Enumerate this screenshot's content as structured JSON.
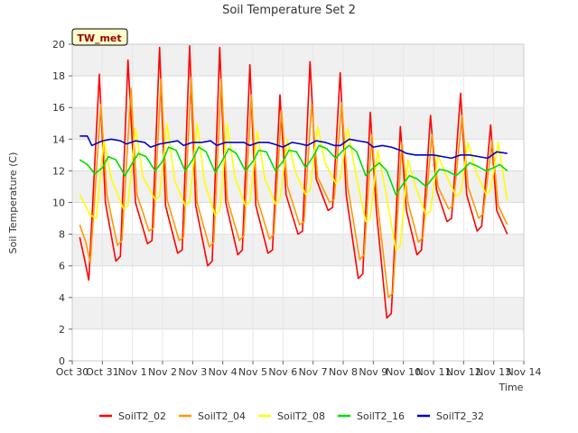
{
  "chart_data": {
    "type": "line",
    "title": "Soil Temperature Set 2",
    "xlabel": "Time",
    "ylabel": "Soil Temperature (C)",
    "site_label": "TW_met",
    "ylim": [
      0,
      20
    ],
    "xlim": [
      0,
      15
    ],
    "yticks": [
      0,
      2,
      4,
      6,
      8,
      10,
      12,
      14,
      16,
      18,
      20
    ],
    "xtick_labels": [
      "Oct 30",
      "Oct 31",
      "Nov 1",
      "Nov 2",
      "Nov 3",
      "Nov 4",
      "Nov 5",
      "Nov 6",
      "Nov 7",
      "Nov 8",
      "Nov 9",
      "Nov 10",
      "Nov 11",
      "Nov 12",
      "Nov 13",
      "Nov 14"
    ],
    "grid": true,
    "legend_position": "bottom",
    "x_unit_note": "x values are days since Oct 30 00:00",
    "series": [
      {
        "name": "SoilT2_02",
        "color": "#ff0000",
        "x": [
          0.25,
          0.4,
          0.55,
          0.9,
          1.1,
          1.45,
          1.6,
          1.85,
          2.1,
          2.5,
          2.65,
          2.9,
          3.1,
          3.5,
          3.65,
          3.9,
          4.1,
          4.5,
          4.65,
          4.9,
          5.1,
          5.5,
          5.65,
          5.9,
          6.1,
          6.5,
          6.65,
          6.9,
          7.1,
          7.5,
          7.65,
          7.9,
          8.1,
          8.5,
          8.65,
          8.9,
          9.1,
          9.5,
          9.65,
          9.9,
          10.1,
          10.45,
          10.6,
          10.9,
          11.1,
          11.45,
          11.6,
          11.9,
          12.1,
          12.45,
          12.6,
          12.9,
          13.1,
          13.45,
          13.6,
          13.9,
          14.1,
          14.45
        ],
        "y": [
          7.8,
          6.5,
          5.1,
          18.1,
          10.0,
          6.3,
          6.6,
          19.0,
          10.0,
          7.4,
          7.6,
          19.8,
          9.8,
          6.8,
          7.0,
          19.9,
          9.8,
          6.0,
          6.3,
          19.8,
          10.0,
          6.7,
          7.0,
          18.7,
          9.8,
          6.8,
          7.0,
          16.8,
          10.5,
          8.0,
          8.2,
          18.9,
          11.5,
          9.5,
          9.7,
          18.2,
          10.5,
          5.2,
          5.5,
          15.7,
          9.5,
          2.7,
          3.0,
          14.8,
          9.5,
          6.7,
          7.0,
          15.5,
          10.8,
          8.8,
          9.0,
          16.9,
          10.5,
          8.2,
          8.5,
          14.9,
          9.5,
          8.0
        ]
      },
      {
        "name": "SoilT2_04",
        "color": "#ff9900",
        "x": [
          0.25,
          0.45,
          0.6,
          0.95,
          1.15,
          1.5,
          1.65,
          1.95,
          2.15,
          2.55,
          2.7,
          2.95,
          3.15,
          3.55,
          3.7,
          3.95,
          4.15,
          4.55,
          4.7,
          4.95,
          5.15,
          5.55,
          5.7,
          5.95,
          6.15,
          6.55,
          6.7,
          6.95,
          7.15,
          7.55,
          7.7,
          7.95,
          8.15,
          8.55,
          8.7,
          8.95,
          9.15,
          9.55,
          9.7,
          9.95,
          10.15,
          10.5,
          10.65,
          10.95,
          11.15,
          11.5,
          11.65,
          11.95,
          12.15,
          12.5,
          12.65,
          12.95,
          13.15,
          13.5,
          13.65,
          13.95,
          14.15,
          14.45
        ],
        "y": [
          8.6,
          7.5,
          6.2,
          16.2,
          10.5,
          7.3,
          7.6,
          17.2,
          10.5,
          8.2,
          8.4,
          17.8,
          10.2,
          7.6,
          7.8,
          17.9,
          10.0,
          7.2,
          7.5,
          17.8,
          10.2,
          7.6,
          7.9,
          16.8,
          10.2,
          7.7,
          8.0,
          15.8,
          11.0,
          8.6,
          8.8,
          16.2,
          11.6,
          10.0,
          10.2,
          16.3,
          11.0,
          6.4,
          6.7,
          14.3,
          9.8,
          4.0,
          4.3,
          13.8,
          10.0,
          7.5,
          7.8,
          14.3,
          11.0,
          9.6,
          9.8,
          15.5,
          11.0,
          9.0,
          9.3,
          13.9,
          9.8,
          8.6
        ]
      },
      {
        "name": "SoilT2_08",
        "color": "#ffff00",
        "x": [
          0.25,
          0.6,
          0.8,
          1.05,
          1.3,
          1.7,
          1.85,
          2.1,
          2.35,
          2.75,
          2.9,
          3.15,
          3.4,
          3.75,
          3.9,
          4.15,
          4.4,
          4.75,
          4.9,
          5.15,
          5.4,
          5.75,
          5.9,
          6.15,
          6.4,
          6.75,
          6.9,
          7.15,
          7.4,
          7.75,
          7.9,
          8.15,
          8.4,
          8.75,
          8.9,
          9.15,
          9.4,
          9.75,
          9.9,
          10.15,
          10.4,
          10.75,
          10.9,
          11.15,
          11.4,
          11.75,
          11.9,
          12.15,
          12.4,
          12.75,
          12.9,
          13.15,
          13.4,
          13.75,
          13.9,
          14.15,
          14.45
        ],
        "y": [
          10.5,
          9.2,
          9.0,
          14.0,
          11.5,
          9.6,
          9.8,
          14.7,
          11.6,
          10.2,
          10.4,
          15.0,
          11.4,
          9.8,
          10.0,
          15.0,
          11.2,
          9.2,
          9.5,
          15.0,
          11.6,
          9.8,
          10.0,
          14.5,
          11.5,
          9.9,
          10.2,
          14.0,
          12.0,
          10.5,
          10.8,
          14.8,
          12.5,
          11.2,
          11.5,
          14.7,
          12.0,
          8.8,
          9.0,
          13.3,
          10.8,
          7.0,
          7.3,
          12.7,
          11.0,
          9.2,
          9.5,
          13.0,
          11.8,
          10.4,
          10.6,
          13.8,
          12.0,
          10.5,
          10.8,
          13.8,
          10.1
        ]
      },
      {
        "name": "SoilT2_16",
        "color": "#00dd00",
        "x": [
          0.25,
          0.5,
          0.75,
          1.0,
          1.2,
          1.45,
          1.75,
          2.0,
          2.2,
          2.45,
          2.75,
          3.0,
          3.2,
          3.45,
          3.75,
          4.0,
          4.2,
          4.45,
          4.75,
          5.0,
          5.2,
          5.45,
          5.75,
          6.0,
          6.2,
          6.45,
          6.75,
          7.0,
          7.2,
          7.45,
          7.75,
          8.0,
          8.2,
          8.45,
          8.75,
          9.0,
          9.2,
          9.45,
          9.75,
          10.0,
          10.2,
          10.45,
          10.75,
          11.0,
          11.2,
          11.45,
          11.75,
          12.0,
          12.2,
          12.45,
          12.75,
          13.0,
          13.2,
          13.45,
          13.75,
          14.0,
          14.2,
          14.45
        ],
        "y": [
          12.7,
          12.4,
          11.8,
          12.2,
          12.9,
          12.7,
          11.7,
          12.5,
          13.1,
          12.9,
          12.0,
          12.6,
          13.5,
          13.3,
          12.0,
          12.7,
          13.5,
          13.2,
          11.9,
          12.7,
          13.4,
          13.1,
          12.0,
          12.6,
          13.3,
          13.2,
          12.0,
          12.6,
          13.3,
          13.2,
          12.2,
          12.9,
          13.6,
          13.4,
          12.8,
          13.3,
          13.6,
          13.2,
          11.7,
          12.2,
          12.5,
          12.0,
          10.5,
          11.2,
          11.7,
          11.5,
          11.0,
          11.6,
          12.1,
          12.0,
          11.7,
          12.1,
          12.5,
          12.3,
          12.0,
          12.2,
          12.4,
          12.0
        ]
      },
      {
        "name": "SoilT2_32",
        "color": "#0000cc",
        "x": [
          0.25,
          0.5,
          0.65,
          1.0,
          1.3,
          1.6,
          1.8,
          2.1,
          2.4,
          2.6,
          2.9,
          3.2,
          3.5,
          3.7,
          4.0,
          4.3,
          4.6,
          4.8,
          5.1,
          5.4,
          5.7,
          5.9,
          6.2,
          6.5,
          6.7,
          7.0,
          7.3,
          7.6,
          7.8,
          8.1,
          8.4,
          8.7,
          8.9,
          9.2,
          9.5,
          9.8,
          10.0,
          10.3,
          10.6,
          10.9,
          11.1,
          11.4,
          11.7,
          12.0,
          12.3,
          12.6,
          12.9,
          13.2,
          13.5,
          13.8,
          14.1,
          14.45
        ],
        "y": [
          14.2,
          14.2,
          13.6,
          13.9,
          14.0,
          13.9,
          13.7,
          13.9,
          13.8,
          13.5,
          13.7,
          13.8,
          13.9,
          13.6,
          13.8,
          13.8,
          13.9,
          13.6,
          13.8,
          13.8,
          13.8,
          13.6,
          13.8,
          13.8,
          13.7,
          13.5,
          13.8,
          13.7,
          13.6,
          13.9,
          13.8,
          13.6,
          13.6,
          14.0,
          13.9,
          13.8,
          13.5,
          13.6,
          13.5,
          13.3,
          13.1,
          13.0,
          13.0,
          13.0,
          12.9,
          12.8,
          13.0,
          13.0,
          12.9,
          12.8,
          13.2,
          13.1
        ]
      }
    ]
  }
}
